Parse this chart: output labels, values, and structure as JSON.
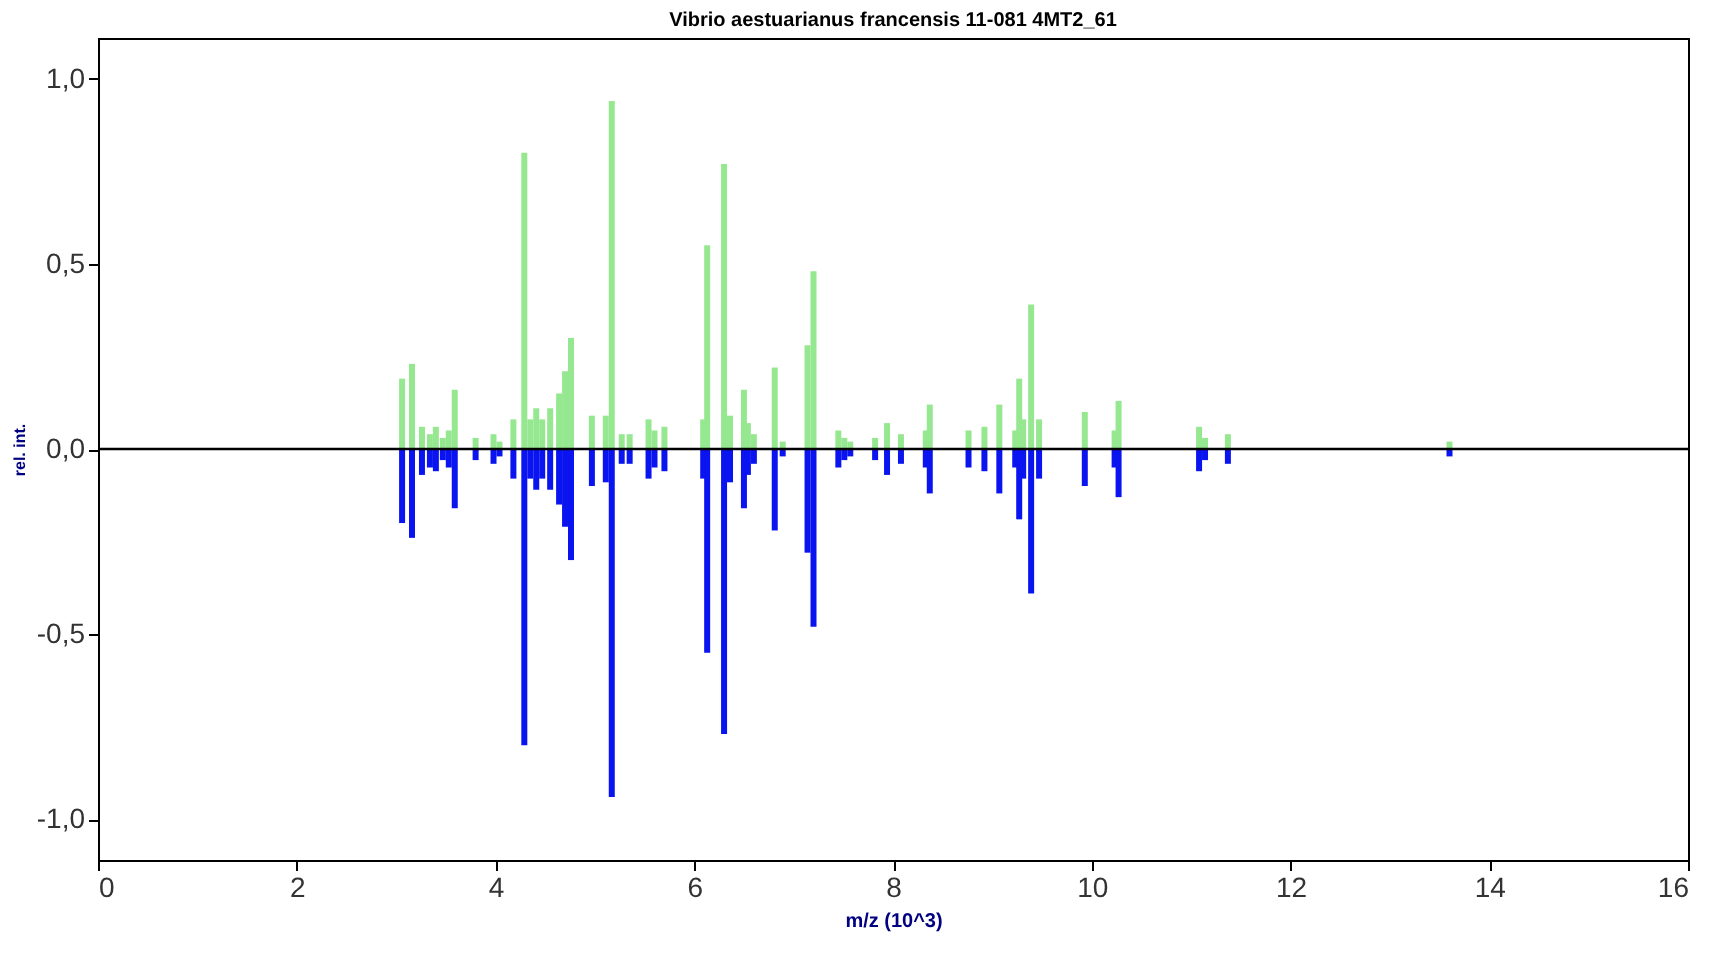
{
  "chart_data": {
    "type": "bar",
    "title": "Vibrio aestuarianus francensis 11-081 4MT2_61",
    "xlabel": "m/z (10^3)",
    "ylabel": "rel. int.",
    "x": [
      3.06,
      3.16,
      3.26,
      3.34,
      3.4,
      3.47,
      3.53,
      3.59,
      3.8,
      3.98,
      4.04,
      4.18,
      4.29,
      4.35,
      4.41,
      4.47,
      4.55,
      4.64,
      4.7,
      4.76,
      4.97,
      5.11,
      5.17,
      5.27,
      5.35,
      5.54,
      5.6,
      5.7,
      6.09,
      6.13,
      6.3,
      6.36,
      6.5,
      6.54,
      6.6,
      6.81,
      6.89,
      7.14,
      7.2,
      7.45,
      7.51,
      7.57,
      7.82,
      7.94,
      8.08,
      8.33,
      8.37,
      8.76,
      8.92,
      9.07,
      9.23,
      9.27,
      9.31,
      9.39,
      9.47,
      9.93,
      10.23,
      10.27,
      11.08,
      11.14,
      11.37,
      13.6
    ],
    "series": [
      {
        "color": "#96e890",
        "values": [
          0.19,
          0.23,
          0.06,
          0.04,
          0.06,
          0.03,
          0.05,
          0.16,
          0.03,
          0.04,
          0.02,
          0.08,
          0.8,
          0.08,
          0.11,
          0.08,
          0.11,
          0.15,
          0.21,
          0.3,
          0.09,
          0.09,
          0.94,
          0.04,
          0.04,
          0.08,
          0.05,
          0.06,
          0.08,
          0.55,
          0.77,
          0.09,
          0.16,
          0.07,
          0.04,
          0.22,
          0.02,
          0.28,
          0.48,
          0.05,
          0.03,
          0.02,
          0.03,
          0.07,
          0.04,
          0.05,
          0.12,
          0.05,
          0.06,
          0.12,
          0.05,
          0.19,
          0.08,
          0.39,
          0.08,
          0.1,
          0.05,
          0.13,
          0.06,
          0.03,
          0.04,
          0.02
        ]
      },
      {
        "color": "#0a14f0",
        "values": [
          -0.2,
          -0.24,
          -0.07,
          -0.05,
          -0.06,
          -0.03,
          -0.05,
          -0.16,
          -0.03,
          -0.04,
          -0.02,
          -0.08,
          -0.8,
          -0.08,
          -0.11,
          -0.08,
          -0.11,
          -0.15,
          -0.21,
          -0.3,
          -0.1,
          -0.09,
          -0.94,
          -0.04,
          -0.04,
          -0.08,
          -0.05,
          -0.06,
          -0.08,
          -0.55,
          -0.77,
          -0.09,
          -0.16,
          -0.07,
          -0.04,
          -0.22,
          -0.02,
          -0.28,
          -0.48,
          -0.05,
          -0.03,
          -0.02,
          -0.03,
          -0.07,
          -0.04,
          -0.05,
          -0.12,
          -0.05,
          -0.06,
          -0.12,
          -0.05,
          -0.19,
          -0.08,
          -0.39,
          -0.08,
          -0.1,
          -0.05,
          -0.13,
          -0.06,
          -0.03,
          -0.04,
          -0.02
        ]
      }
    ],
    "xlim": [
      0,
      16
    ],
    "xticks": [
      0,
      2,
      4,
      6,
      8,
      10,
      12,
      14,
      16
    ],
    "ylim": [
      -1.11,
      1.11
    ],
    "yticks": [
      {
        "value": -1.0,
        "label": "-1,0"
      },
      {
        "value": -0.5,
        "label": "-0,5"
      },
      {
        "value": 0,
        "label": "0,0"
      },
      {
        "value": 0.5,
        "label": "0,5"
      },
      {
        "value": 1.0,
        "label": "1,0"
      }
    ],
    "ref_lines": [
      {
        "axis": "y",
        "value": 0,
        "color": "#000000"
      }
    ],
    "stacked": true,
    "grid": false
  }
}
